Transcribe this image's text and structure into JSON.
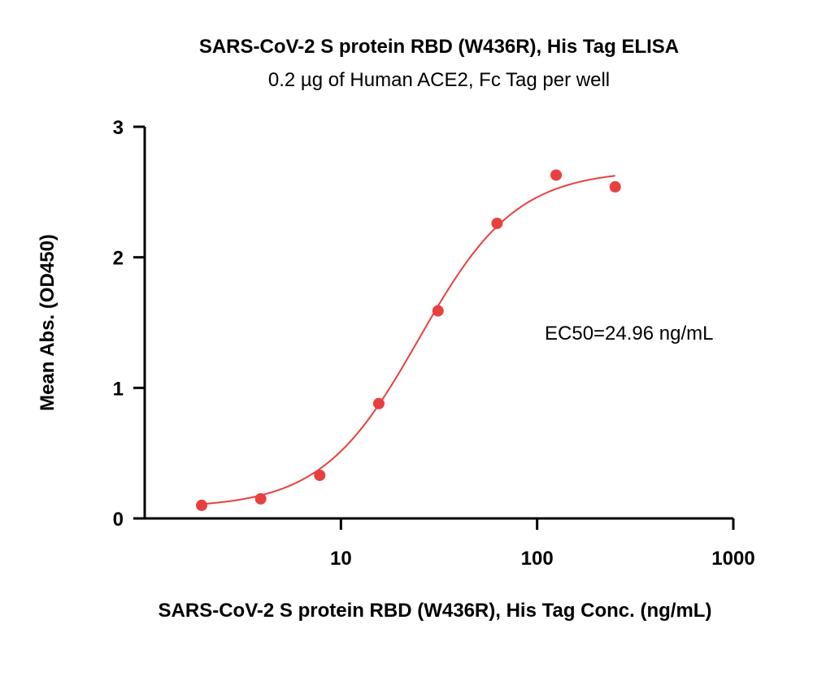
{
  "chart_data": {
    "type": "scatter",
    "title": "SARS-CoV-2 S protein RBD (W436R), His Tag ELISA",
    "subtitle": "0.2 µg of Human ACE2, Fc Tag per well",
    "xlabel": "SARS-CoV-2 S protein RBD (W436R), His Tag Conc. (ng/mL)",
    "ylabel": "Mean Abs. (OD450)",
    "xscale": "log",
    "xlim": [
      1,
      1000
    ],
    "ylim": [
      0,
      3
    ],
    "xticks": [
      10,
      100,
      1000
    ],
    "xtick_labels": [
      "10",
      "100",
      "1000"
    ],
    "yticks": [
      0,
      1,
      2,
      3
    ],
    "ytick_labels": [
      "0",
      "1",
      "2",
      "3"
    ],
    "grid": false,
    "color": "#e8403f",
    "annotation": "EC50=24.96 ng/mL",
    "series": [
      {
        "x": [
          1.95,
          3.9,
          7.8,
          15.6,
          31.25,
          62.5,
          125,
          250
        ],
        "y": [
          0.1,
          0.15,
          0.33,
          0.88,
          1.59,
          2.26,
          2.63,
          2.54
        ]
      }
    ],
    "fit": {
      "model": "4PL",
      "bottom": 0.08,
      "top": 2.67,
      "ec50": 24.96,
      "hill": 1.75,
      "x_range": [
        1.95,
        250
      ]
    }
  }
}
